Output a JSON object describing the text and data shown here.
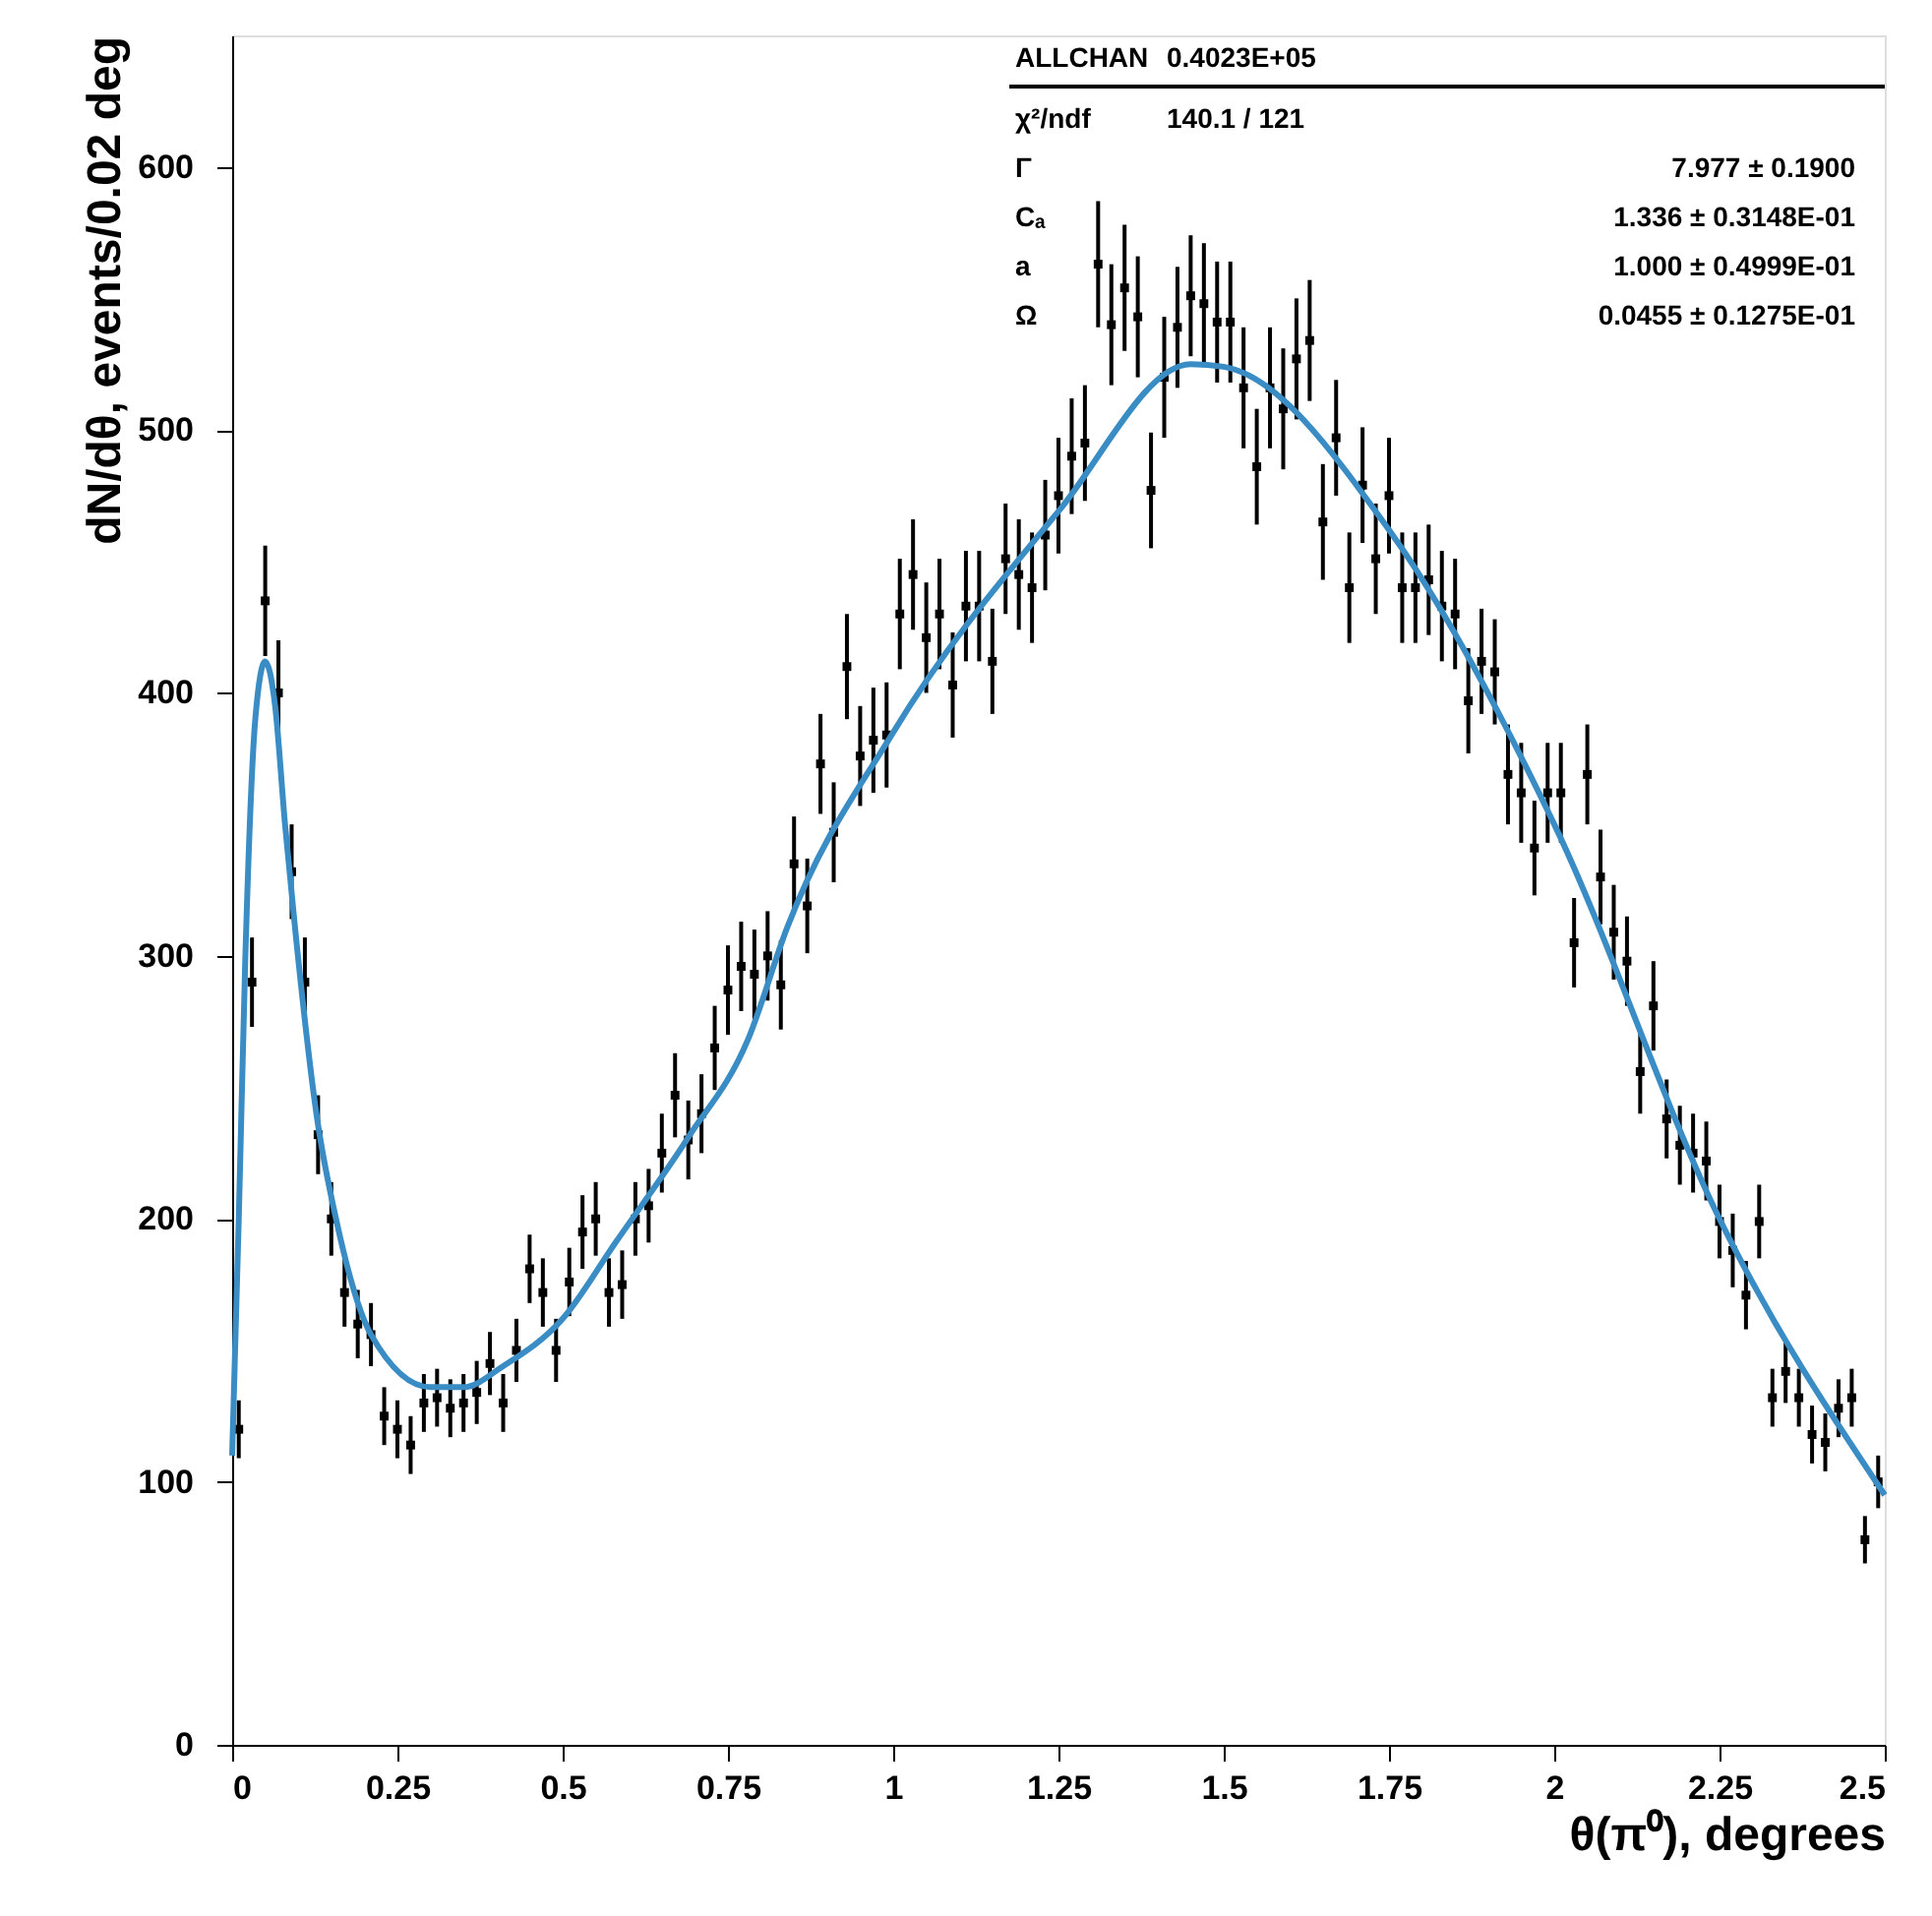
{
  "chart_data": {
    "type": "scatter",
    "xlabel": "θ(π⁰), degrees",
    "ylabel": "dN/dθ, events/0.02 deg",
    "xlim": [
      0,
      2.5
    ],
    "ylim": [
      0,
      650
    ],
    "xticks": [
      0,
      0.25,
      0.5,
      0.75,
      1,
      1.25,
      1.5,
      1.75,
      2,
      2.25,
      2.5
    ],
    "yticks": [
      0,
      100,
      200,
      300,
      400,
      500,
      600
    ],
    "grid": false,
    "annotations": [
      "ALLCHAN",
      "0.4023E+05",
      "χ²/ndf",
      "140.1 / 121",
      "Γ",
      "7.977 ± 0.1900",
      "Cₐ",
      "1.336 ± 0.3148E-01",
      "a",
      "1.000 ± 0.4999E-01",
      "Ω",
      "0.0455 ± 0.1275E-01"
    ],
    "series": [
      {
        "color": "#000000",
        "marker": "square",
        "x": [
          0.01,
          0.03,
          0.05,
          0.07,
          0.09,
          0.11,
          0.13,
          0.15,
          0.17,
          0.19,
          0.21,
          0.23,
          0.25,
          0.27,
          0.29,
          0.31,
          0.33,
          0.35,
          0.37,
          0.39,
          0.41,
          0.43,
          0.45,
          0.47,
          0.49,
          0.51,
          0.53,
          0.55,
          0.57,
          0.59,
          0.61,
          0.63,
          0.65,
          0.67,
          0.69,
          0.71,
          0.73,
          0.75,
          0.77,
          0.79,
          0.81,
          0.83,
          0.85,
          0.87,
          0.89,
          0.91,
          0.93,
          0.95,
          0.97,
          0.99,
          1.01,
          1.03,
          1.05,
          1.07,
          1.09,
          1.11,
          1.13,
          1.15,
          1.17,
          1.19,
          1.21,
          1.23,
          1.25,
          1.27,
          1.29,
          1.31,
          1.33,
          1.35,
          1.37,
          1.39,
          1.41,
          1.43,
          1.45,
          1.47,
          1.49,
          1.51,
          1.53,
          1.55,
          1.57,
          1.59,
          1.61,
          1.63,
          1.65,
          1.67,
          1.69,
          1.71,
          1.73,
          1.75,
          1.77,
          1.79,
          1.81,
          1.83,
          1.85,
          1.87,
          1.89,
          1.91,
          1.93,
          1.95,
          1.97,
          1.99,
          2.01,
          2.03,
          2.05,
          2.07,
          2.09,
          2.11,
          2.13,
          2.15,
          2.17,
          2.19,
          2.21,
          2.23,
          2.25,
          2.27,
          2.29,
          2.31,
          2.33,
          2.35,
          2.37,
          2.39,
          2.41,
          2.43,
          2.45,
          2.47,
          2.49
        ],
        "values": [
          120,
          290,
          435,
          400,
          332,
          290,
          232,
          200,
          172,
          160,
          156,
          125,
          120,
          114,
          130,
          132,
          128,
          130,
          134,
          145,
          130,
          150,
          181,
          172,
          150,
          176,
          195,
          200,
          172,
          175,
          200,
          205,
          225,
          247,
          230,
          240,
          265,
          287,
          296,
          293,
          300,
          289,
          335,
          319,
          373,
          347,
          410,
          376,
          382,
          384,
          430,
          445,
          421,
          430,
          403,
          433,
          433,
          412,
          451,
          445,
          440,
          460,
          475,
          490,
          495,
          563,
          540,
          554,
          543,
          477,
          520,
          539,
          551,
          548,
          541,
          541,
          516,
          486,
          516,
          508,
          527,
          534,
          465,
          497,
          440,
          479,
          451,
          475,
          440,
          440,
          443,
          433,
          430,
          397,
          412,
          408,
          369,
          362,
          341,
          362,
          362,
          305,
          369,
          330,
          309,
          298,
          256,
          281,
          238,
          228,
          225,
          222,
          199,
          188,
          171,
          199,
          132,
          142,
          132,
          118,
          115,
          128,
          132,
          78,
          100
        ],
        "errors": [
          11,
          17,
          21,
          20,
          18,
          17,
          15,
          14,
          13,
          13,
          12,
          11,
          11,
          11,
          11,
          11,
          11,
          11,
          12,
          12,
          11,
          12,
          13,
          13,
          12,
          13,
          14,
          14,
          13,
          13,
          14,
          14,
          15,
          16,
          15,
          15,
          16,
          17,
          17,
          17,
          17,
          17,
          18,
          18,
          19,
          19,
          20,
          19,
          20,
          20,
          21,
          21,
          21,
          21,
          20,
          21,
          21,
          20,
          21,
          21,
          21,
          21,
          22,
          22,
          22,
          24,
          23,
          24,
          23,
          22,
          23,
          23,
          23,
          23,
          23,
          23,
          23,
          22,
          23,
          23,
          23,
          23,
          22,
          22,
          21,
          22,
          21,
          22,
          21,
          21,
          21,
          21,
          21,
          20,
          20,
          20,
          19,
          19,
          18,
          19,
          19,
          17,
          19,
          18,
          18,
          17,
          16,
          17,
          15,
          15,
          15,
          15,
          14,
          14,
          13,
          14,
          11,
          12,
          11,
          11,
          11,
          11,
          11,
          9,
          10
        ]
      },
      {
        "type": "line",
        "color": "#3a8cc4",
        "x": [
          0,
          0.01,
          0.02,
          0.035,
          0.05,
          0.065,
          0.08,
          0.095,
          0.128,
          0.158,
          0.21,
          0.3,
          0.35,
          0.41,
          0.5,
          0.58,
          0.69,
          0.78,
          0.84,
          1.0,
          1.25,
          1.45,
          1.5,
          1.75,
          2.0,
          2.25,
          2.5
        ],
        "values": [
          110,
          200,
          300,
          390,
          412,
          395,
          350,
          311,
          239,
          199,
          156,
          136,
          136,
          144,
          162,
          191,
          231,
          268,
          311,
          385,
          469,
          525,
          524,
          462,
          350,
          200,
          95
        ]
      }
    ]
  }
}
